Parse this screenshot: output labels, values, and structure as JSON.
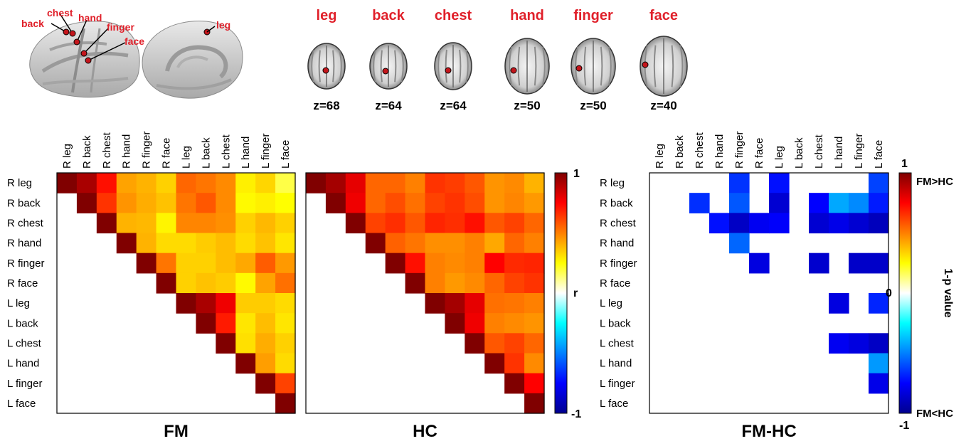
{
  "brain_panel": {
    "lateral_labels": [
      "back",
      "chest",
      "hand",
      "finger",
      "face"
    ],
    "medial_label": "leg",
    "label_color": "#e0202a"
  },
  "slices": [
    {
      "name": "leg",
      "z": "z=68"
    },
    {
      "name": "back",
      "z": "z=64"
    },
    {
      "name": "chest",
      "z": "z=64"
    },
    {
      "name": "hand",
      "z": "z=50"
    },
    {
      "name": "finger",
      "z": "z=50"
    },
    {
      "name": "face",
      "z": "z=40"
    }
  ],
  "colors": {
    "accent": "#e0202a",
    "marker": "#c4161c"
  },
  "chart_data": [
    {
      "type": "heatmap",
      "title": "FM",
      "categories": [
        "R leg",
        "R back",
        "R chest",
        "R hand",
        "R finger",
        "R face",
        "L leg",
        "L back",
        "L chest",
        "L hand",
        "L finger",
        "L face"
      ],
      "values": [
        [
          1.0,
          0.92,
          0.72,
          0.43,
          0.4,
          0.34,
          0.55,
          0.52,
          0.48,
          0.28,
          0.33,
          0.18
        ],
        [
          null,
          1.0,
          0.65,
          0.46,
          0.41,
          0.37,
          0.52,
          0.58,
          0.48,
          0.26,
          0.28,
          0.25
        ],
        [
          null,
          null,
          1.0,
          0.4,
          0.39,
          0.27,
          0.49,
          0.49,
          0.47,
          0.34,
          0.39,
          0.34
        ],
        [
          null,
          null,
          null,
          1.0,
          0.4,
          0.32,
          0.32,
          0.35,
          0.38,
          0.32,
          0.37,
          0.3
        ],
        [
          null,
          null,
          null,
          null,
          1.0,
          0.52,
          0.34,
          0.34,
          0.38,
          0.42,
          0.57,
          0.45
        ],
        [
          null,
          null,
          null,
          null,
          null,
          1.0,
          0.34,
          0.37,
          0.35,
          0.26,
          0.43,
          0.53
        ],
        [
          null,
          null,
          null,
          null,
          null,
          null,
          1.0,
          0.92,
          0.78,
          0.35,
          0.35,
          0.32
        ],
        [
          null,
          null,
          null,
          null,
          null,
          null,
          null,
          1.0,
          0.7,
          0.3,
          0.38,
          0.3
        ],
        [
          null,
          null,
          null,
          null,
          null,
          null,
          null,
          null,
          1.0,
          0.31,
          0.41,
          0.34
        ],
        [
          null,
          null,
          null,
          null,
          null,
          null,
          null,
          null,
          null,
          1.0,
          0.44,
          0.32
        ],
        [
          null,
          null,
          null,
          null,
          null,
          null,
          null,
          null,
          null,
          null,
          1.0,
          0.62
        ],
        [
          null,
          null,
          null,
          null,
          null,
          null,
          null,
          null,
          null,
          null,
          null,
          1.0
        ]
      ],
      "triangle": "upper"
    },
    {
      "type": "heatmap",
      "title": "HC",
      "categories": [
        "R leg",
        "R back",
        "R chest",
        "R hand",
        "R finger",
        "R face",
        "L leg",
        "L back",
        "L chest",
        "L hand",
        "L finger",
        "L face"
      ],
      "values": [
        [
          1.0,
          0.93,
          0.8,
          0.55,
          0.55,
          0.5,
          0.65,
          0.63,
          0.58,
          0.46,
          0.48,
          0.4
        ],
        [
          null,
          1.0,
          0.78,
          0.55,
          0.6,
          0.53,
          0.62,
          0.65,
          0.6,
          0.46,
          0.49,
          0.45
        ],
        [
          null,
          null,
          1.0,
          0.62,
          0.66,
          0.58,
          0.68,
          0.66,
          0.72,
          0.58,
          0.62,
          0.55
        ],
        [
          null,
          null,
          null,
          1.0,
          0.56,
          0.52,
          0.47,
          0.47,
          0.5,
          0.42,
          0.55,
          0.5
        ],
        [
          null,
          null,
          null,
          null,
          1.0,
          0.72,
          0.5,
          0.48,
          0.5,
          0.75,
          0.67,
          0.68
        ],
        [
          null,
          null,
          null,
          null,
          null,
          1.0,
          0.5,
          0.45,
          0.48,
          0.55,
          0.62,
          0.65
        ],
        [
          null,
          null,
          null,
          null,
          null,
          null,
          1.0,
          0.93,
          0.8,
          0.53,
          0.52,
          0.5
        ],
        [
          null,
          null,
          null,
          null,
          null,
          null,
          null,
          1.0,
          0.78,
          0.5,
          0.48,
          0.46
        ],
        [
          null,
          null,
          null,
          null,
          null,
          null,
          null,
          null,
          1.0,
          0.58,
          0.62,
          0.55
        ],
        [
          null,
          null,
          null,
          null,
          null,
          null,
          null,
          null,
          null,
          1.0,
          0.65,
          0.48
        ],
        [
          null,
          null,
          null,
          null,
          null,
          null,
          null,
          null,
          null,
          null,
          1.0,
          0.75
        ],
        [
          null,
          null,
          null,
          null,
          null,
          null,
          null,
          null,
          null,
          null,
          null,
          1.0
        ]
      ],
      "triangle": "upper"
    },
    {
      "type": "heatmap",
      "title": "FM-HC",
      "categories": [
        "R leg",
        "R back",
        "R chest",
        "R hand",
        "R finger",
        "R face",
        "L leg",
        "L back",
        "L chest",
        "L hand",
        "L finger",
        "L face"
      ],
      "values": [
        [
          null,
          null,
          null,
          null,
          -0.65,
          null,
          -0.72,
          null,
          null,
          null,
          null,
          -0.62
        ],
        [
          null,
          null,
          -0.66,
          null,
          -0.58,
          null,
          -0.85,
          null,
          -0.75,
          -0.42,
          -0.48,
          -0.7
        ],
        [
          null,
          null,
          null,
          -0.72,
          -0.88,
          -0.78,
          -0.76,
          null,
          -0.85,
          -0.8,
          -0.85,
          -0.9
        ],
        [
          null,
          null,
          null,
          null,
          -0.55,
          null,
          null,
          null,
          null,
          null,
          null,
          null
        ],
        [
          null,
          null,
          null,
          null,
          null,
          -0.82,
          null,
          null,
          -0.86,
          null,
          -0.87,
          -0.87
        ],
        [
          null,
          null,
          null,
          null,
          null,
          null,
          null,
          null,
          null,
          null,
          null,
          null
        ],
        [
          null,
          null,
          null,
          null,
          null,
          null,
          null,
          null,
          null,
          -0.82,
          null,
          -0.68
        ],
        [
          null,
          null,
          null,
          null,
          null,
          null,
          null,
          null,
          null,
          null,
          null,
          null
        ],
        [
          null,
          null,
          null,
          null,
          null,
          null,
          null,
          null,
          null,
          -0.78,
          -0.82,
          -0.88
        ],
        [
          null,
          null,
          null,
          null,
          null,
          null,
          null,
          null,
          null,
          null,
          null,
          -0.45
        ],
        [
          null,
          null,
          null,
          null,
          null,
          null,
          null,
          null,
          null,
          null,
          null,
          -0.8
        ],
        [
          null,
          null,
          null,
          null,
          null,
          null,
          null,
          null,
          null,
          null,
          null,
          null
        ]
      ]
    }
  ],
  "colorbars": [
    {
      "top": "1",
      "middle": "r",
      "bottom": "-1"
    },
    {
      "top": "1",
      "middle": "0",
      "bottom": "-1",
      "top_note": "FM>HC",
      "bottom_note": "FM<HC",
      "label": "1-p value"
    }
  ]
}
